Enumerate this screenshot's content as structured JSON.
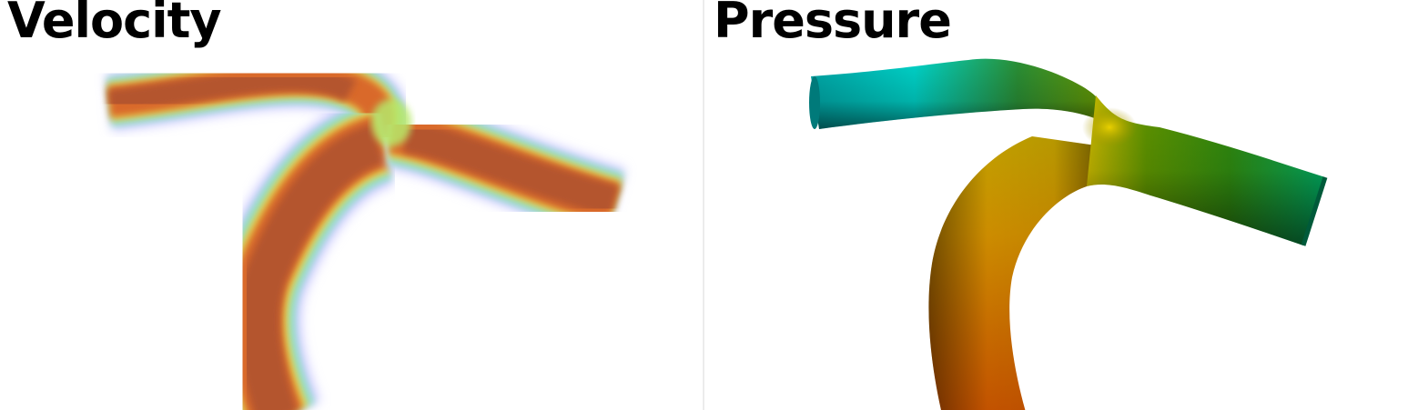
{
  "panels": {
    "left": {
      "title": "Velocity"
    },
    "right": {
      "title": "Pressure"
    }
  },
  "colors": {
    "background": "#ffffff",
    "divider": "#ececec",
    "velocity_core": "#b4542d",
    "velocity_mid": "#e8d24a",
    "velocity_outer": "#8fe0c8",
    "velocity_edge": "#b9b8ff",
    "pressure_high": "#c25a00",
    "pressure_mid": "#c8a800",
    "pressure_green": "#3a8a00",
    "pressure_low": "#00c9b8"
  }
}
